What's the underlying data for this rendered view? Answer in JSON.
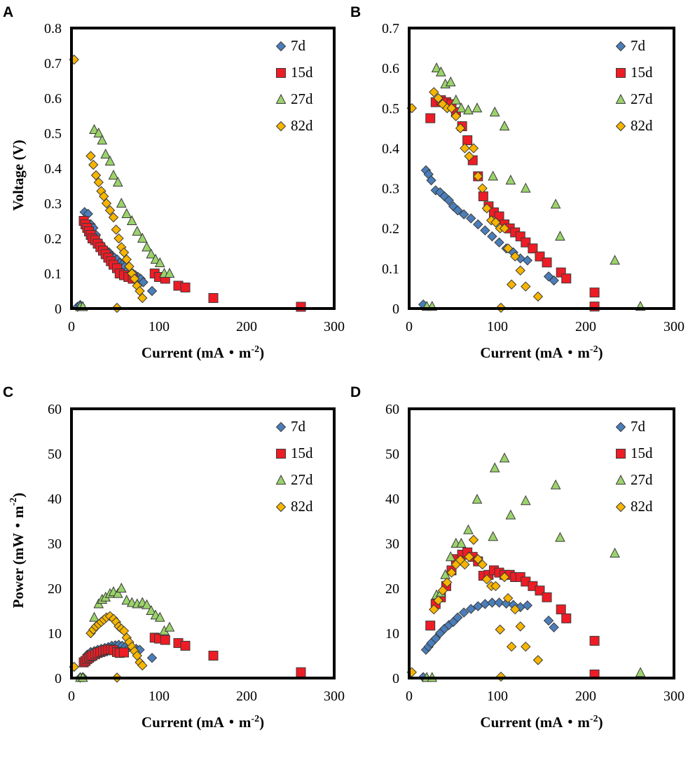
{
  "colors": {
    "7d": "#4a7ebb",
    "15d": "#ee1c25",
    "27d": "#9bd36b",
    "82d": "#f7b500"
  },
  "chart_data": [
    {
      "panel": "A",
      "type": "scatter",
      "xlabel": "Current (mA・m",
      "xlabel_sup": "-2",
      "xlabel_close": ")",
      "ylabel": "Voltage (V)",
      "ylabel_sup": "",
      "xlim": [
        0,
        300
      ],
      "ylim": [
        0,
        0.8
      ],
      "xticks": [
        "0",
        "100",
        "200",
        "300"
      ],
      "yticks": [
        "0",
        "0.1",
        "0.2",
        "0.3",
        "0.4",
        "0.5",
        "0.6",
        "0.7",
        "0.8"
      ],
      "series": [
        {
          "name": "7d",
          "marker": "diamond",
          "x": [
            7,
            10,
            15,
            19,
            22,
            25,
            28,
            31,
            34,
            37,
            40,
            43,
            46,
            49,
            52,
            55,
            58,
            61,
            64,
            67,
            70,
            73,
            76,
            79,
            82,
            92
          ],
          "y": [
            0.005,
            0.01,
            0.275,
            0.27,
            0.24,
            0.23,
            0.21,
            0.19,
            0.18,
            0.17,
            0.165,
            0.16,
            0.15,
            0.145,
            0.14,
            0.13,
            0.125,
            0.12,
            0.11,
            0.1,
            0.1,
            0.095,
            0.09,
            0.085,
            0.075,
            0.05
          ]
        },
        {
          "name": "15d",
          "marker": "square",
          "x": [
            14,
            16,
            18,
            20,
            22,
            24,
            27,
            30,
            33,
            36,
            39,
            42,
            45,
            48,
            52,
            55,
            60,
            65,
            70,
            95,
            100,
            107,
            122,
            130,
            162,
            262
          ],
          "y": [
            0.25,
            0.24,
            0.23,
            0.22,
            0.21,
            0.2,
            0.195,
            0.185,
            0.175,
            0.165,
            0.155,
            0.145,
            0.135,
            0.125,
            0.115,
            0.1,
            0.095,
            0.09,
            0.085,
            0.1,
            0.09,
            0.085,
            0.065,
            0.06,
            0.03,
            0.005
          ]
        },
        {
          "name": "27d",
          "marker": "triangle",
          "x": [
            10,
            13,
            26,
            31,
            35,
            39,
            44,
            48,
            53,
            57,
            63,
            69,
            75,
            81,
            86,
            91,
            96,
            101,
            106,
            112
          ],
          "y": [
            0.005,
            0.005,
            0.51,
            0.5,
            0.48,
            0.44,
            0.42,
            0.38,
            0.36,
            0.3,
            0.27,
            0.25,
            0.22,
            0.2,
            0.175,
            0.155,
            0.14,
            0.13,
            0.1,
            0.1
          ]
        },
        {
          "name": "82d",
          "marker": "diamond",
          "x": [
            3,
            22,
            25,
            28,
            31,
            34,
            37,
            40,
            44,
            48,
            51,
            54,
            57,
            60,
            63,
            66,
            69,
            72,
            75,
            78,
            81,
            52
          ],
          "y": [
            0.71,
            0.435,
            0.41,
            0.38,
            0.36,
            0.335,
            0.32,
            0.3,
            0.28,
            0.26,
            0.225,
            0.2,
            0.175,
            0.16,
            0.14,
            0.12,
            0.1,
            0.085,
            0.065,
            0.05,
            0.03,
            0.002
          ]
        }
      ]
    },
    {
      "panel": "B",
      "type": "scatter",
      "xlabel": "Current (mA・m",
      "xlabel_sup": "-2",
      "xlabel_close": ")",
      "ylabel": "",
      "ylabel_sup": "",
      "xlim": [
        0,
        300
      ],
      "ylim": [
        0,
        0.7
      ],
      "xticks": [
        "0",
        "100",
        "200",
        "300"
      ],
      "yticks": [
        "0",
        "0.1",
        "0.2",
        "0.3",
        "0.4",
        "0.5",
        "0.6",
        "0.7"
      ],
      "series": [
        {
          "name": "7d",
          "marker": "diamond",
          "x": [
            16,
            19,
            22,
            25,
            30,
            35,
            40,
            45,
            50,
            55,
            62,
            70,
            78,
            86,
            94,
            102,
            110,
            118,
            126,
            134,
            158,
            164
          ],
          "y": [
            0.01,
            0.345,
            0.335,
            0.32,
            0.295,
            0.29,
            0.28,
            0.27,
            0.255,
            0.245,
            0.235,
            0.225,
            0.21,
            0.195,
            0.18,
            0.165,
            0.15,
            0.14,
            0.125,
            0.12,
            0.08,
            0.07
          ]
        },
        {
          "name": "15d",
          "marker": "square",
          "x": [
            24,
            30,
            36,
            42,
            48,
            53,
            60,
            66,
            72,
            78,
            84,
            90,
            96,
            102,
            108,
            114,
            120,
            126,
            132,
            140,
            148,
            156,
            172,
            178,
            210,
            210
          ],
          "y": [
            0.475,
            0.515,
            0.52,
            0.515,
            0.51,
            0.49,
            0.455,
            0.42,
            0.37,
            0.33,
            0.28,
            0.255,
            0.24,
            0.23,
            0.21,
            0.2,
            0.19,
            0.18,
            0.165,
            0.15,
            0.13,
            0.115,
            0.09,
            0.075,
            0.04,
            0.005
          ]
        },
        {
          "name": "27d",
          "marker": "triangle",
          "x": [
            20,
            26,
            31,
            36,
            41,
            47,
            53,
            59,
            67,
            77,
            97,
            108,
            115,
            132,
            166,
            171,
            233,
            262,
            95
          ],
          "y": [
            0.005,
            0.005,
            0.6,
            0.59,
            0.56,
            0.565,
            0.52,
            0.5,
            0.495,
            0.5,
            0.49,
            0.455,
            0.32,
            0.3,
            0.26,
            0.18,
            0.12,
            0.005,
            0.33
          ]
        },
        {
          "name": "82d",
          "marker": "diamond",
          "x": [
            3,
            28,
            33,
            38,
            43,
            48,
            53,
            58,
            63,
            68,
            73,
            78,
            83,
            88,
            93,
            98,
            103,
            108,
            112,
            116,
            120,
            126,
            132,
            146,
            104
          ],
          "y": [
            0.5,
            0.54,
            0.525,
            0.51,
            0.5,
            0.5,
            0.48,
            0.45,
            0.4,
            0.38,
            0.4,
            0.33,
            0.3,
            0.25,
            0.22,
            0.215,
            0.2,
            0.2,
            0.15,
            0.06,
            0.13,
            0.095,
            0.055,
            0.03,
            0.002
          ]
        }
      ]
    },
    {
      "panel": "C",
      "type": "scatter",
      "xlabel": "Current (mA・m",
      "xlabel_sup": "-2",
      "xlabel_close": ")",
      "ylabel": "Power (mW・m",
      "ylabel_sup": "-2",
      "ylabel_close": ")",
      "xlim": [
        0,
        300
      ],
      "ylim": [
        0,
        60
      ],
      "xticks": [
        "0",
        "100",
        "200",
        "300"
      ],
      "yticks": [
        "0",
        "10",
        "20",
        "30",
        "40",
        "50",
        "60"
      ],
      "series": [
        {
          "name": "7d",
          "marker": "diamond",
          "x": [
            10,
            13,
            18,
            22,
            26,
            30,
            34,
            38,
            42,
            46,
            50,
            54,
            58,
            62,
            66,
            70,
            74,
            78,
            92
          ],
          "y": [
            0.1,
            0.2,
            5.2,
            5.8,
            6.0,
            6.3,
            6.5,
            6.7,
            6.9,
            7.2,
            7.3,
            7.4,
            7.2,
            7.0,
            6.9,
            6.6,
            6.5,
            6.3,
            4.5
          ]
        },
        {
          "name": "15d",
          "marker": "square",
          "x": [
            14,
            16,
            18,
            20,
            22,
            24,
            27,
            30,
            33,
            36,
            39,
            42,
            45,
            48,
            52,
            55,
            60,
            95,
            100,
            107,
            122,
            130,
            162,
            262
          ],
          "y": [
            3.5,
            3.8,
            4.2,
            4.5,
            4.8,
            5.0,
            5.3,
            5.6,
            5.8,
            6.0,
            6.2,
            6.3,
            6.4,
            6.2,
            5.8,
            5.6,
            5.7,
            9.0,
            8.8,
            8.5,
            7.8,
            7.2,
            5.0,
            1.3
          ]
        },
        {
          "name": "27d",
          "marker": "triangle",
          "x": [
            10,
            13,
            26,
            31,
            35,
            39,
            44,
            48,
            53,
            57,
            63,
            69,
            75,
            81,
            86,
            91,
            96,
            101,
            106,
            112
          ],
          "y": [
            0.1,
            0.1,
            13.5,
            16.5,
            17.5,
            18.0,
            18.8,
            19.2,
            18.8,
            20.0,
            17.3,
            16.8,
            16.5,
            16.8,
            16.3,
            15.0,
            14.0,
            13.5,
            10.5,
            11.3
          ]
        },
        {
          "name": "82d",
          "marker": "diamond",
          "x": [
            3,
            22,
            25,
            28,
            31,
            34,
            37,
            40,
            44,
            48,
            51,
            54,
            57,
            60,
            63,
            66,
            69,
            72,
            75,
            78,
            81,
            52
          ],
          "y": [
            2.5,
            10.0,
            10.8,
            11.5,
            12.0,
            12.5,
            13.0,
            13.5,
            13.8,
            13.2,
            12.5,
            11.5,
            11.0,
            10.5,
            9.0,
            8.0,
            7.0,
            6.0,
            5.0,
            3.5,
            2.8,
            0.1
          ]
        }
      ]
    },
    {
      "panel": "D",
      "type": "scatter",
      "xlabel": "Current (mA・m",
      "xlabel_sup": "-2",
      "xlabel_close": ")",
      "ylabel": "",
      "ylabel_sup": "",
      "xlim": [
        0,
        300
      ],
      "ylim": [
        0,
        60
      ],
      "xticks": [
        "0",
        "100",
        "200",
        "300"
      ],
      "yticks": [
        "0",
        "10",
        "20",
        "30",
        "40",
        "50",
        "60"
      ],
      "series": [
        {
          "name": "7d",
          "marker": "diamond",
          "x": [
            16,
            19,
            22,
            25,
            30,
            35,
            40,
            45,
            50,
            55,
            62,
            70,
            78,
            86,
            94,
            102,
            110,
            118,
            126,
            134,
            158,
            164
          ],
          "y": [
            0.2,
            6.3,
            7.0,
            7.8,
            8.8,
            10.0,
            11.0,
            11.8,
            12.5,
            13.5,
            14.6,
            15.4,
            16.0,
            16.5,
            16.8,
            16.8,
            16.6,
            16.3,
            15.8,
            16.2,
            12.8,
            11.3
          ]
        },
        {
          "name": "15d",
          "marker": "square",
          "x": [
            24,
            30,
            36,
            42,
            48,
            53,
            60,
            66,
            72,
            78,
            84,
            90,
            96,
            102,
            108,
            114,
            120,
            126,
            132,
            140,
            148,
            156,
            172,
            178,
            210,
            210
          ],
          "y": [
            11.7,
            16.5,
            18.0,
            20.5,
            24.0,
            26.5,
            27.5,
            28.0,
            27.0,
            26.0,
            22.8,
            23.0,
            24.0,
            23.5,
            23.0,
            23.0,
            22.5,
            22.5,
            21.5,
            20.5,
            19.5,
            18.0,
            15.3,
            13.3,
            8.3,
            0.8
          ]
        },
        {
          "name": "27d",
          "marker": "triangle",
          "x": [
            20,
            26,
            31,
            36,
            41,
            47,
            53,
            59,
            67,
            77,
            97,
            108,
            115,
            132,
            166,
            171,
            233,
            262,
            95
          ],
          "y": [
            0.1,
            0.1,
            18.5,
            19.0,
            23.0,
            27.0,
            30.0,
            30.0,
            33.0,
            39.8,
            46.8,
            49.0,
            36.3,
            39.5,
            43.0,
            31.3,
            27.8,
            1.2,
            31.5
          ]
        },
        {
          "name": "82d",
          "marker": "diamond",
          "x": [
            3,
            28,
            33,
            38,
            43,
            48,
            53,
            58,
            63,
            68,
            73,
            78,
            83,
            88,
            93,
            98,
            103,
            108,
            112,
            116,
            120,
            126,
            132,
            146,
            104
          ],
          "y": [
            1.3,
            15.3,
            17.3,
            19.5,
            21.3,
            23.5,
            25.3,
            26.3,
            25.3,
            27.0,
            30.8,
            26.5,
            25.3,
            22.0,
            20.5,
            20.5,
            10.8,
            22.5,
            17.8,
            7.0,
            15.3,
            11.5,
            7.0,
            4.0,
            0.3
          ]
        }
      ]
    }
  ]
}
